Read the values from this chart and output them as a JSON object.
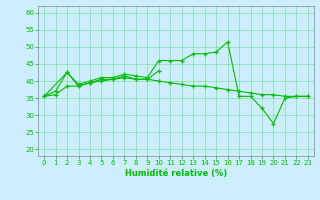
{
  "xlabel": "Humidité relative (%)",
  "xlim": [
    -0.5,
    23.5
  ],
  "ylim": [
    18,
    62
  ],
  "yticks": [
    20,
    25,
    30,
    35,
    40,
    45,
    50,
    55,
    60
  ],
  "xticks": [
    0,
    1,
    2,
    3,
    4,
    5,
    6,
    7,
    8,
    9,
    10,
    11,
    12,
    13,
    14,
    15,
    16,
    17,
    18,
    19,
    20,
    21,
    22,
    23
  ],
  "background_color": "#cceeff",
  "grid_color": "#33cc33",
  "line_color": "#00bb00",
  "lineA_x": [
    0,
    1,
    2,
    3,
    4,
    5,
    6,
    7,
    8,
    9,
    10,
    11,
    12,
    13,
    14,
    15,
    16,
    17,
    18,
    19,
    20,
    21,
    22,
    23
  ],
  "lineA_y": [
    35.5,
    37.0,
    42.5,
    39.0,
    40.0,
    41.0,
    41.0,
    42.0,
    41.5,
    41.0,
    46.0,
    46.0,
    46.0,
    48.0,
    48.0,
    48.5,
    51.5,
    35.5,
    35.5,
    32.0,
    27.5,
    35.0,
    35.5,
    35.5
  ],
  "lineB_x": [
    0,
    2,
    3,
    4,
    5,
    6,
    7,
    8,
    9,
    10
  ],
  "lineB_y": [
    35.5,
    42.5,
    38.5,
    39.5,
    40.5,
    40.5,
    41.5,
    40.5,
    40.5,
    43.0
  ],
  "lineC_x": [
    0,
    1,
    2,
    3,
    4,
    5,
    6,
    7,
    8,
    9,
    10,
    11,
    12,
    13,
    14,
    15,
    16,
    17,
    18,
    19,
    20,
    21,
    22,
    23
  ],
  "lineC_y": [
    35.5,
    36.0,
    38.5,
    38.5,
    39.5,
    40.0,
    40.5,
    41.0,
    40.5,
    40.5,
    40.0,
    39.5,
    39.0,
    38.5,
    38.5,
    38.0,
    37.5,
    37.0,
    36.5,
    36.0,
    36.0,
    35.5,
    35.5,
    35.5
  ],
  "figsize": [
    3.2,
    2.0
  ],
  "dpi": 100
}
